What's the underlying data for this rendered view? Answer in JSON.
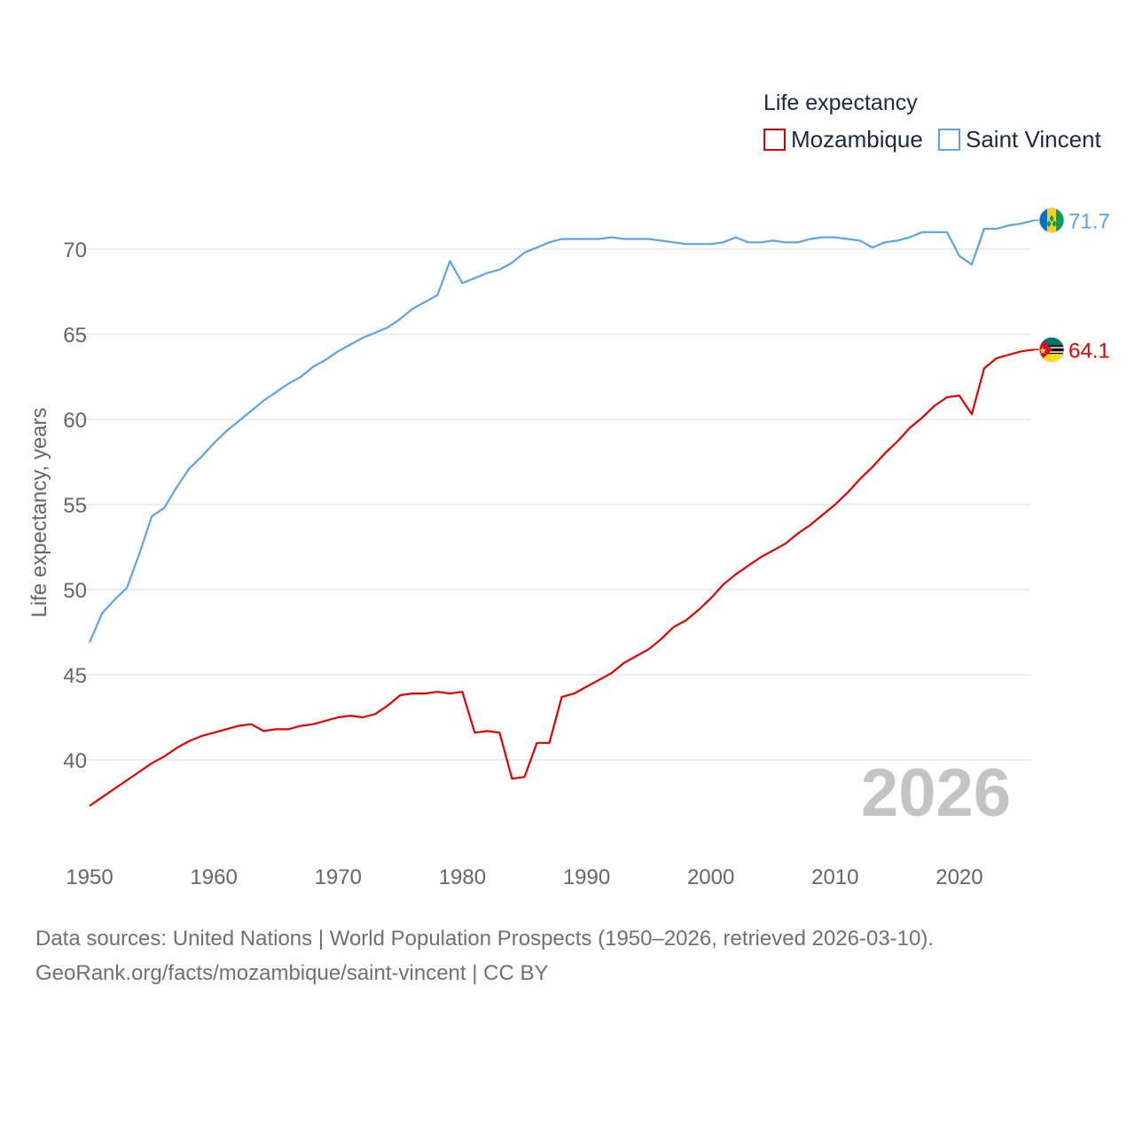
{
  "chart_data": {
    "type": "line",
    "title": "",
    "legend_title": "Life expectancy",
    "legend_position": "top-right",
    "xlabel": "",
    "ylabel": "Life expectancy, years",
    "xlim": [
      1950,
      2026
    ],
    "ylim": [
      35,
      73
    ],
    "x_ticks": [
      1950,
      1960,
      1970,
      1980,
      1990,
      2000,
      2010,
      2020
    ],
    "y_ticks": [
      40,
      45,
      50,
      55,
      60,
      65,
      70
    ],
    "grid": true,
    "current_year_label": "2026",
    "x": [
      1950,
      1951,
      1952,
      1953,
      1954,
      1955,
      1956,
      1957,
      1958,
      1959,
      1960,
      1961,
      1962,
      1963,
      1964,
      1965,
      1966,
      1967,
      1968,
      1969,
      1970,
      1971,
      1972,
      1973,
      1974,
      1975,
      1976,
      1977,
      1978,
      1979,
      1980,
      1981,
      1982,
      1983,
      1984,
      1985,
      1986,
      1987,
      1988,
      1989,
      1990,
      1991,
      1992,
      1993,
      1994,
      1995,
      1996,
      1997,
      1998,
      1999,
      2000,
      2001,
      2002,
      2003,
      2004,
      2005,
      2006,
      2007,
      2008,
      2009,
      2010,
      2011,
      2012,
      2013,
      2014,
      2015,
      2016,
      2017,
      2018,
      2019,
      2020,
      2021,
      2022,
      2023,
      2024,
      2025,
      2026
    ],
    "series": [
      {
        "name": "Mozambique",
        "color": "#e00000",
        "end_label": "64.1",
        "flag_icon": "mozambique-flag-icon",
        "values": [
          37.3,
          37.8,
          38.3,
          38.8,
          39.3,
          39.8,
          40.2,
          40.7,
          41.1,
          41.4,
          41.6,
          41.8,
          42.0,
          42.1,
          41.7,
          41.8,
          41.8,
          42.0,
          42.1,
          42.3,
          42.5,
          42.6,
          42.5,
          42.7,
          43.2,
          43.8,
          43.9,
          43.9,
          44.0,
          43.9,
          44.0,
          41.6,
          41.7,
          41.6,
          38.9,
          39.0,
          41.0,
          41.0,
          43.7,
          43.9,
          44.3,
          44.7,
          45.1,
          45.7,
          46.1,
          46.5,
          47.1,
          47.8,
          48.2,
          48.8,
          49.5,
          50.3,
          50.9,
          51.4,
          51.9,
          52.3,
          52.7,
          53.3,
          53.8,
          54.4,
          55.0,
          55.7,
          56.5,
          57.2,
          58.0,
          58.7,
          59.5,
          60.1,
          60.8,
          61.3,
          61.4,
          60.3,
          63.0,
          63.6,
          63.8,
          64.0,
          64.1
        ]
      },
      {
        "name": "Saint Vincent",
        "color": "#5da4e3",
        "end_label": "71.7",
        "flag_icon": "saint-vincent-flag-icon",
        "values": [
          46.9,
          48.6,
          49.4,
          50.1,
          52.1,
          54.3,
          54.8,
          56.0,
          57.1,
          57.8,
          58.6,
          59.3,
          59.9,
          60.5,
          61.1,
          61.6,
          62.1,
          62.5,
          63.1,
          63.5,
          64.0,
          64.4,
          64.8,
          65.1,
          65.4,
          65.9,
          66.5,
          66.9,
          67.3,
          69.3,
          68.0,
          68.3,
          68.6,
          68.8,
          69.2,
          69.8,
          70.1,
          70.4,
          70.6,
          70.6,
          70.6,
          70.6,
          70.7,
          70.6,
          70.6,
          70.6,
          70.5,
          70.4,
          70.3,
          70.3,
          70.3,
          70.4,
          70.7,
          70.4,
          70.4,
          70.5,
          70.4,
          70.4,
          70.6,
          70.7,
          70.7,
          70.6,
          70.5,
          70.1,
          70.4,
          70.5,
          70.7,
          71.0,
          71.0,
          71.0,
          69.6,
          69.1,
          71.2,
          71.2,
          71.4,
          71.5,
          71.7
        ]
      }
    ]
  },
  "footer": {
    "sources": "Data sources: United Nations | World Population Prospects (1950–2026, retrieved 2026-03-10).",
    "link": "GeoRank.org/facts/mozambique/saint-vincent | CC BY"
  }
}
